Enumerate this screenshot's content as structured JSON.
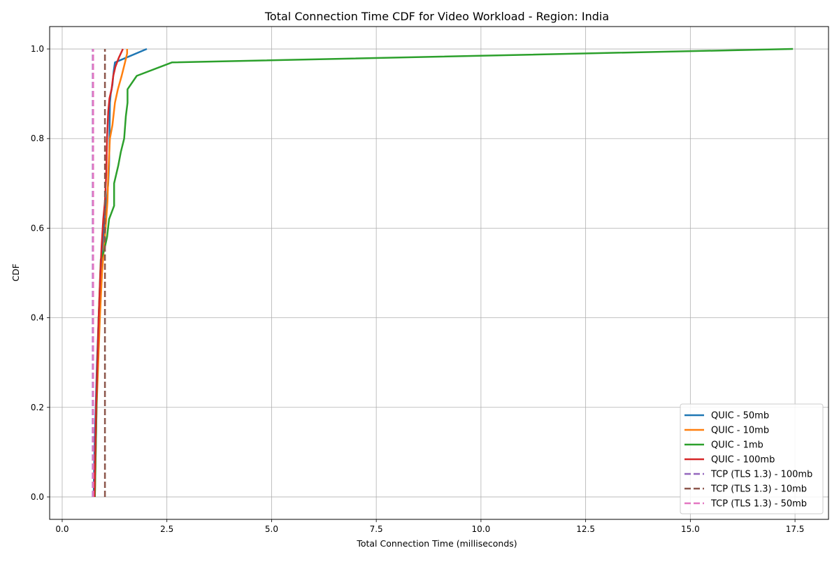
{
  "chart_data": {
    "type": "line",
    "title": "Total Connection Time CDF for Video Workload - Region: India",
    "xlabel": "Total Connection Time (milliseconds)",
    "ylabel": "CDF",
    "xlim": [
      -0.3,
      18.3
    ],
    "ylim": [
      -0.05,
      1.05
    ],
    "xticks": [
      0.0,
      2.5,
      5.0,
      7.5,
      10.0,
      12.5,
      15.0,
      17.5
    ],
    "xtick_labels": [
      "0.0",
      "2.5",
      "5.0",
      "7.5",
      "10.0",
      "12.5",
      "15.0",
      "17.5"
    ],
    "yticks": [
      0.0,
      0.2,
      0.4,
      0.6,
      0.8,
      1.0
    ],
    "ytick_labels": [
      "0.0",
      "0.2",
      "0.4",
      "0.6",
      "0.8",
      "1.0"
    ],
    "grid": true,
    "legend_position": "bottom-right",
    "series": [
      {
        "name": "QUIC - 50mb",
        "color": "#1f77b4",
        "style": "solid",
        "x": [
          0.75,
          0.77,
          0.8,
          0.83,
          0.87,
          0.92,
          0.97,
          1.02,
          1.06,
          1.1,
          1.12,
          1.13,
          1.14,
          1.16,
          1.2,
          1.23,
          1.26,
          2.02
        ],
        "y": [
          0.0,
          0.1,
          0.2,
          0.3,
          0.4,
          0.5,
          0.56,
          0.62,
          0.66,
          0.7,
          0.74,
          0.8,
          0.88,
          0.9,
          0.92,
          0.95,
          0.97,
          1.0
        ]
      },
      {
        "name": "QUIC - 10mb",
        "color": "#ff7f0e",
        "style": "solid",
        "x": [
          0.78,
          0.8,
          0.82,
          0.86,
          0.9,
          0.95,
          1.0,
          1.05,
          1.08,
          1.1,
          1.14,
          1.2,
          1.26,
          1.33,
          1.42,
          1.5,
          1.55,
          1.55
        ],
        "y": [
          0.0,
          0.1,
          0.2,
          0.3,
          0.4,
          0.5,
          0.56,
          0.62,
          0.66,
          0.72,
          0.8,
          0.83,
          0.88,
          0.91,
          0.94,
          0.97,
          0.99,
          1.0
        ]
      },
      {
        "name": "QUIC - 1mb",
        "color": "#2ca02c",
        "style": "solid",
        "x": [
          0.78,
          0.8,
          0.82,
          0.84,
          0.87,
          0.92,
          1.0,
          1.07,
          1.12,
          1.24,
          1.24,
          1.34,
          1.4,
          1.48,
          1.52,
          1.56,
          1.56,
          1.78,
          2.62,
          17.45
        ],
        "y": [
          0.0,
          0.1,
          0.2,
          0.3,
          0.4,
          0.53,
          0.55,
          0.58,
          0.62,
          0.65,
          0.7,
          0.74,
          0.77,
          0.8,
          0.85,
          0.88,
          0.91,
          0.94,
          0.97,
          1.0
        ]
      },
      {
        "name": "QUIC - 100mb",
        "color": "#d62728",
        "style": "solid",
        "x": [
          0.77,
          0.79,
          0.81,
          0.84,
          0.87,
          0.91,
          0.94,
          0.98,
          1.02,
          1.05,
          1.07,
          1.1,
          1.13,
          1.18,
          1.22,
          1.27,
          1.35,
          1.45
        ],
        "y": [
          0.0,
          0.1,
          0.2,
          0.3,
          0.4,
          0.5,
          0.56,
          0.62,
          0.66,
          0.72,
          0.8,
          0.86,
          0.89,
          0.91,
          0.94,
          0.96,
          0.98,
          1.0
        ]
      },
      {
        "name": "TCP (TLS 1.3) - 100mb",
        "color": "#9467bd",
        "style": "dashed",
        "x": [
          0.73,
          0.73
        ],
        "y": [
          0.0,
          1.0
        ]
      },
      {
        "name": "TCP (TLS 1.3) - 10mb",
        "color": "#8c564b",
        "style": "dashed",
        "x": [
          1.02,
          1.02
        ],
        "y": [
          0.0,
          1.0
        ]
      },
      {
        "name": "TCP (TLS 1.3) - 50mb",
        "color": "#e377c2",
        "style": "dashed",
        "x": [
          0.74,
          0.74
        ],
        "y": [
          0.0,
          1.0
        ]
      }
    ]
  }
}
